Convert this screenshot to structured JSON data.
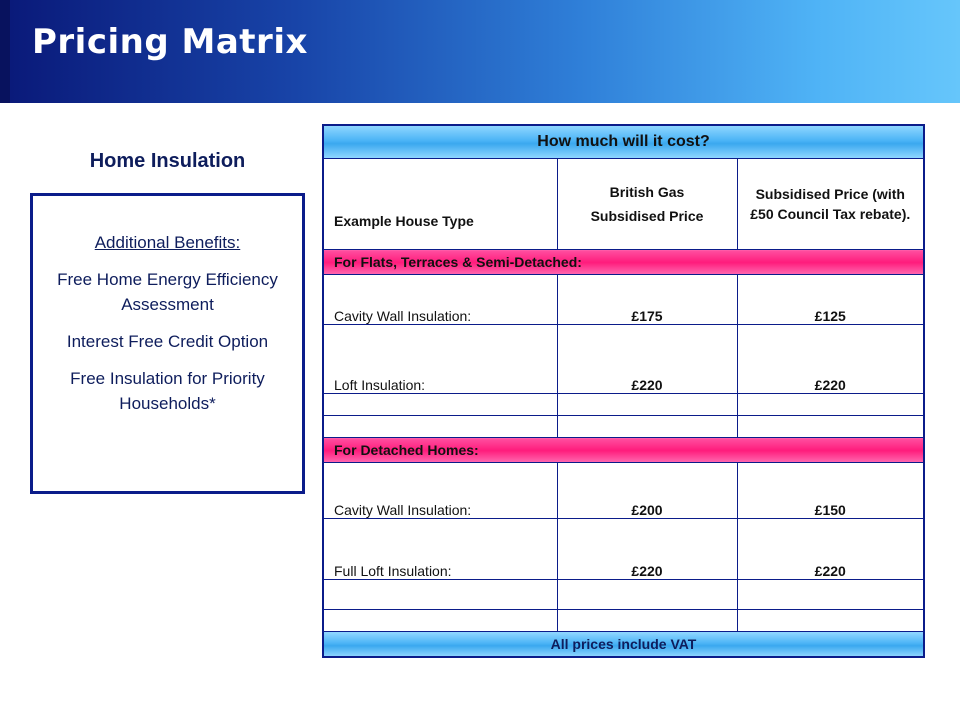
{
  "header": {
    "title": "Pricing Matrix"
  },
  "sidebar": {
    "heading": "Home Insulation",
    "box_title": "Additional Benefits:",
    "items": [
      "Free Home Energy Efficiency Assessment",
      "Interest Free Credit Option",
      "Free Insulation for Priority Households*"
    ]
  },
  "table": {
    "top_banner": "How much will it cost?",
    "columns": {
      "house_type": "Example House Type",
      "bg_line1": "British Gas",
      "bg_line2": "Subsidised Price",
      "council": "Subsidised Price (with £50 Council Tax rebate)."
    },
    "section1": {
      "label": "For Flats, Terraces & Semi-Detached:",
      "rows": [
        {
          "type": "Cavity Wall Insulation:",
          "bg": "£175",
          "council": "£125"
        },
        {
          "type": "Loft Insulation:",
          "bg": "£220",
          "council": "£220"
        }
      ]
    },
    "section2": {
      "label": "For Detached Homes:",
      "rows": [
        {
          "type": "Cavity Wall Insulation:",
          "bg": "£200",
          "council": "£150"
        },
        {
          "type": "Full Loft Insulation:",
          "bg": "£220",
          "council": "£220"
        }
      ]
    },
    "footer": "All prices include VAT"
  },
  "colors": {
    "header_dark": "#0a1a7a",
    "header_light": "#66c6fb",
    "border_blue": "#0b1c8a",
    "band_blue": "#4cb4f6",
    "band_pink": "#ff1c7c"
  }
}
